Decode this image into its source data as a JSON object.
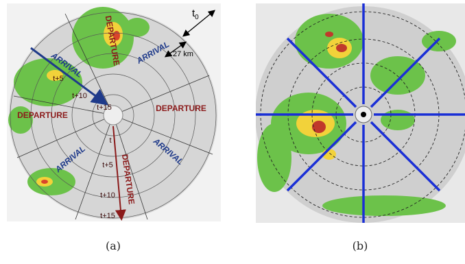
{
  "panels": [
    {
      "caption": "(a)",
      "labels": {
        "departure_top": "DEPARTURE",
        "arrival_top_right": "ARRIVAL",
        "arrival_arrow": "ARRIVAL",
        "departure_left": "DEPARTURE",
        "departure_right": "DEPARTURE",
        "arrival_bottom_left": "ARRIVAL",
        "arrival_bottom_right": "ARRIVAL",
        "departure_bottom": "DEPARTURE",
        "arrival_t5": "t+5",
        "arrival_t10": "t+10",
        "arrival_t15": "t+15",
        "departure_t": "t",
        "departure_t5": "t+5",
        "departure_t10": "t+10",
        "departure_t15": "t+15",
        "t0": {
          "text": "t",
          "subscript": "0"
        },
        "distance": "27 km"
      }
    },
    {
      "caption": "(b)"
    }
  ]
}
